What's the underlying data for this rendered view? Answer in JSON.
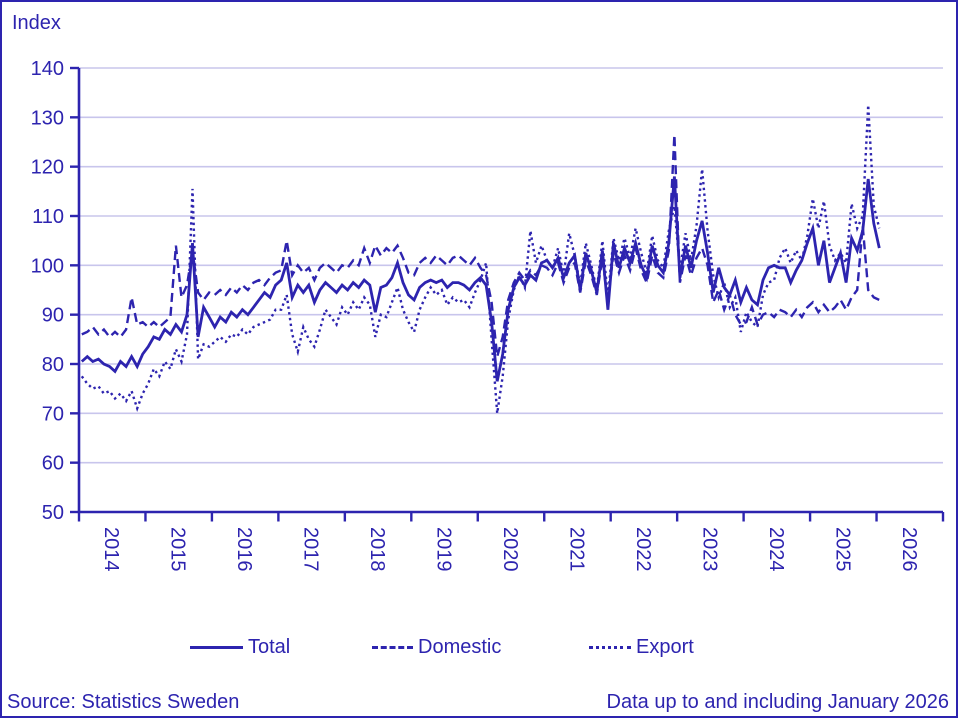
{
  "header": {
    "index_label": "Index"
  },
  "footer": {
    "source": "Source: Statistics Sweden",
    "data_note": "Data up to and including January 2026"
  },
  "colors": {
    "line": "#2d24af",
    "grid": "#c8c5ec",
    "background": "#ffffff"
  },
  "chart_data": {
    "type": "line",
    "title": "",
    "ylabel": "Index",
    "xlabel": "",
    "x_unit": "month",
    "x_start": "2014-01",
    "x_end": "2026-01",
    "grid": "horizontal",
    "legend_position": "bottom",
    "ylim": [
      50,
      140
    ],
    "y_ticks": [
      50,
      60,
      70,
      80,
      90,
      100,
      110,
      120,
      130,
      140
    ],
    "categories": [
      "2014",
      "2015",
      "2016",
      "2017",
      "2018",
      "2019",
      "2020",
      "2021",
      "2022",
      "2023",
      "2024",
      "2025",
      "2026"
    ],
    "series": [
      {
        "name": "Total",
        "line_style": "solid",
        "values": [
          80.5,
          81.5,
          80.5,
          81,
          80,
          79.5,
          78.5,
          80.5,
          79.5,
          81.5,
          79.5,
          82,
          83.5,
          85.5,
          85,
          87,
          86,
          88,
          86.5,
          90,
          104.5,
          85.5,
          91.5,
          89.5,
          87.5,
          89.5,
          88.5,
          90.5,
          89.5,
          91,
          90,
          91.5,
          93,
          94.5,
          93.5,
          96,
          97,
          100.5,
          93.5,
          96,
          94.5,
          96,
          92.5,
          95,
          96.5,
          95.5,
          94.5,
          96,
          95,
          96.5,
          95.5,
          97,
          96,
          90.5,
          95.5,
          96,
          97.5,
          100.5,
          96.5,
          94,
          93,
          95.5,
          96.5,
          97,
          96.5,
          97,
          95.5,
          96.5,
          96.5,
          96,
          95,
          96.5,
          97.5,
          96,
          88.5,
          76.5,
          82,
          91,
          95.5,
          97.5,
          96,
          98,
          97,
          100.5,
          101,
          99.5,
          101.5,
          97.5,
          100.5,
          102,
          95,
          102.5,
          99,
          94.5,
          103,
          91,
          104.5,
          99.5,
          103.5,
          100.5,
          104.5,
          100,
          97.5,
          104,
          100,
          98.5,
          104.5,
          118,
          97.5,
          104,
          99.5,
          105,
          109,
          102.5,
          94.5,
          99.5,
          95.5,
          94,
          97,
          92.5,
          95.5,
          93,
          92,
          97,
          99.5,
          100,
          99.5,
          99.5,
          96.5,
          99,
          101,
          104.5,
          107.5,
          100,
          105,
          96.5,
          99.5,
          102.5,
          96.5,
          105.5,
          103,
          107,
          117.5,
          108.5,
          103.5
        ]
      },
      {
        "name": "Domestic",
        "line_style": "dashed",
        "values": [
          86,
          86.5,
          87.5,
          86,
          87,
          85.5,
          86.5,
          85.5,
          87,
          93.5,
          88,
          88.5,
          87.5,
          88.5,
          87.5,
          88.5,
          89.5,
          104,
          93.5,
          96,
          103,
          94.5,
          93,
          94.5,
          94,
          95,
          94,
          95.5,
          94.5,
          96,
          95,
          96.5,
          97,
          96,
          97.5,
          98.5,
          99,
          105,
          98,
          100,
          98.5,
          99.5,
          97,
          99.5,
          100.5,
          99.5,
          98.5,
          100,
          99.5,
          101,
          100,
          103.5,
          100.5,
          104,
          102,
          103.5,
          102.5,
          104,
          101.5,
          98.5,
          98,
          100.5,
          101.5,
          100.5,
          102,
          101,
          100,
          101.5,
          102,
          101,
          100,
          101.5,
          99.5,
          98,
          92.5,
          81.5,
          85.5,
          93,
          96.5,
          98.5,
          97,
          99,
          98,
          100,
          99.5,
          98,
          100.5,
          96.5,
          99.5,
          100.5,
          94.5,
          101,
          98,
          94,
          101.5,
          92.5,
          102.5,
          98.5,
          102,
          99,
          103.5,
          99,
          96.5,
          102,
          98.5,
          97.5,
          103,
          126.5,
          96.5,
          102,
          98,
          101.5,
          103.5,
          100,
          92.5,
          95,
          91,
          94,
          90,
          88,
          88.5,
          91.5,
          88,
          90,
          90.5,
          89.5,
          91,
          90.5,
          89.5,
          91,
          89.5,
          91.5,
          92.5,
          90.5,
          92,
          90.5,
          91.5,
          93,
          91,
          93.5,
          95,
          108,
          95,
          93.5,
          93
        ]
      },
      {
        "name": "Export",
        "line_style": "dotted",
        "values": [
          77.5,
          76,
          75,
          75.5,
          74,
          74.5,
          73,
          74,
          72.5,
          74.5,
          71,
          74,
          76,
          79,
          77.5,
          80.5,
          79,
          83,
          80.5,
          86,
          115.5,
          81,
          84,
          83.5,
          84.5,
          85.5,
          84.5,
          86,
          85.5,
          87,
          86,
          87.5,
          88,
          88.5,
          89,
          91,
          91,
          94,
          86,
          82.5,
          87.5,
          85,
          83.5,
          87,
          91,
          89.5,
          88,
          91.5,
          90,
          92.5,
          91,
          93.5,
          92,
          85.5,
          90,
          89.5,
          92.5,
          95.5,
          91,
          88.5,
          86.5,
          91,
          93.5,
          95.5,
          94,
          95,
          92,
          93.5,
          92.5,
          93,
          91.5,
          94.5,
          97,
          100.5,
          85,
          70,
          77.5,
          89,
          95,
          98,
          95.5,
          107,
          100.5,
          104,
          101,
          99.5,
          103.5,
          98,
          106.5,
          102,
          96,
          104.5,
          100,
          95,
          105,
          93.5,
          105.5,
          101,
          105.5,
          101.5,
          107.5,
          102.5,
          98.5,
          106,
          101,
          99.5,
          107,
          112,
          99,
          106.5,
          101,
          108,
          119.5,
          107,
          98,
          93.5,
          96.5,
          91.5,
          93.5,
          86.5,
          90.5,
          88.5,
          87.5,
          94,
          96.5,
          97,
          101.5,
          103.5,
          100.5,
          103,
          101,
          106,
          113.5,
          107.5,
          113,
          104,
          101,
          102.5,
          100.5,
          112.5,
          107.5,
          110,
          132.5,
          112,
          107.5
        ]
      }
    ]
  }
}
